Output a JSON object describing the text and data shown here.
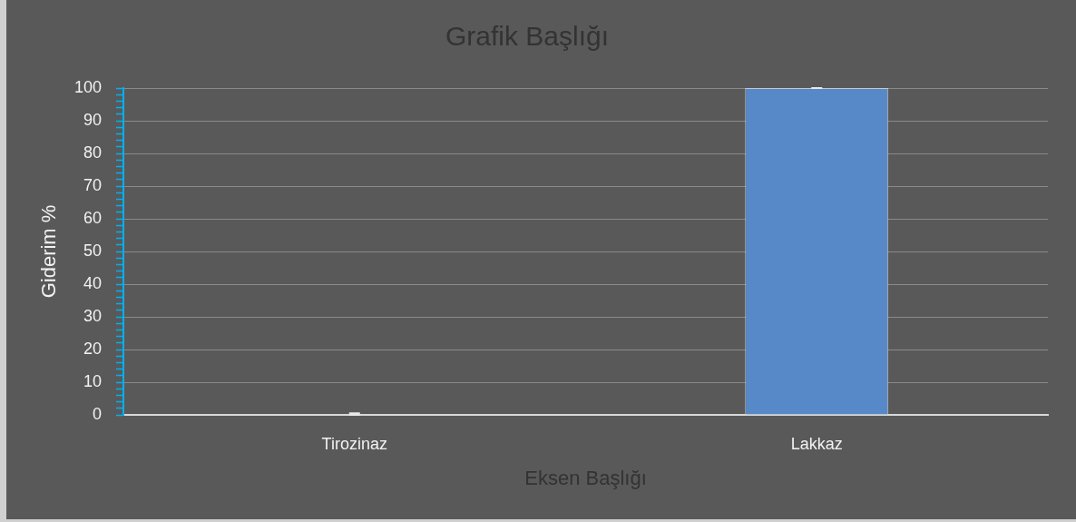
{
  "chart_data": {
    "type": "bar",
    "title": "Grafik Başlığı",
    "xlabel": "Eksen Başlığı",
    "ylabel": "Giderim %",
    "categories": [
      "Tirozinaz",
      "Lakkaz"
    ],
    "values": [
      0,
      100
    ],
    "color": "#5789c8",
    "errors": [
      [
        0,
        0.5
      ],
      0
    ],
    "ylim": [
      0,
      100
    ],
    "yticks": [
      0,
      {
        "value": 2,
        "label": null
      },
      {
        "value": 4,
        "label": null
      },
      {
        "value": 6,
        "label": null
      },
      {
        "value": 8,
        "label": null
      },
      10,
      {
        "value": 12,
        "label": null
      },
      {
        "value": 14,
        "label": null
      },
      {
        "value": 16,
        "label": null
      },
      {
        "value": 18,
        "label": null
      },
      20,
      {
        "value": 22,
        "label": null
      },
      {
        "value": 24,
        "label": null
      },
      {
        "value": 26,
        "label": null
      },
      {
        "value": 28,
        "label": null
      },
      30,
      {
        "value": 32,
        "label": null
      },
      {
        "value": 34,
        "label": null
      },
      {
        "value": 36,
        "label": null
      },
      {
        "value": 38,
        "label": null
      },
      40,
      {
        "value": 42,
        "label": null
      },
      {
        "value": 44,
        "label": null
      },
      {
        "value": 46,
        "label": null
      },
      {
        "value": 48,
        "label": null
      },
      50,
      {
        "value": 52,
        "label": null
      },
      {
        "value": 54,
        "label": null
      },
      {
        "value": 56,
        "label": null
      },
      {
        "value": 58,
        "label": null
      },
      60,
      {
        "value": 62,
        "label": null
      },
      {
        "value": 64,
        "label": null
      },
      {
        "value": 66,
        "label": null
      },
      {
        "value": 68,
        "label": null
      },
      70,
      {
        "value": 72,
        "label": null
      },
      {
        "value": 74,
        "label": null
      },
      {
        "value": 76,
        "label": null
      },
      {
        "value": 78,
        "label": null
      },
      80,
      {
        "value": 82,
        "label": null
      },
      {
        "value": 84,
        "label": null
      },
      {
        "value": 86,
        "label": null
      },
      {
        "value": 88,
        "label": null
      },
      90,
      {
        "value": 92,
        "label": null
      },
      {
        "value": 94,
        "label": null
      },
      {
        "value": 96,
        "label": null
      },
      {
        "value": 98,
        "label": null
      },
      100
    ],
    "grid": "y"
  }
}
